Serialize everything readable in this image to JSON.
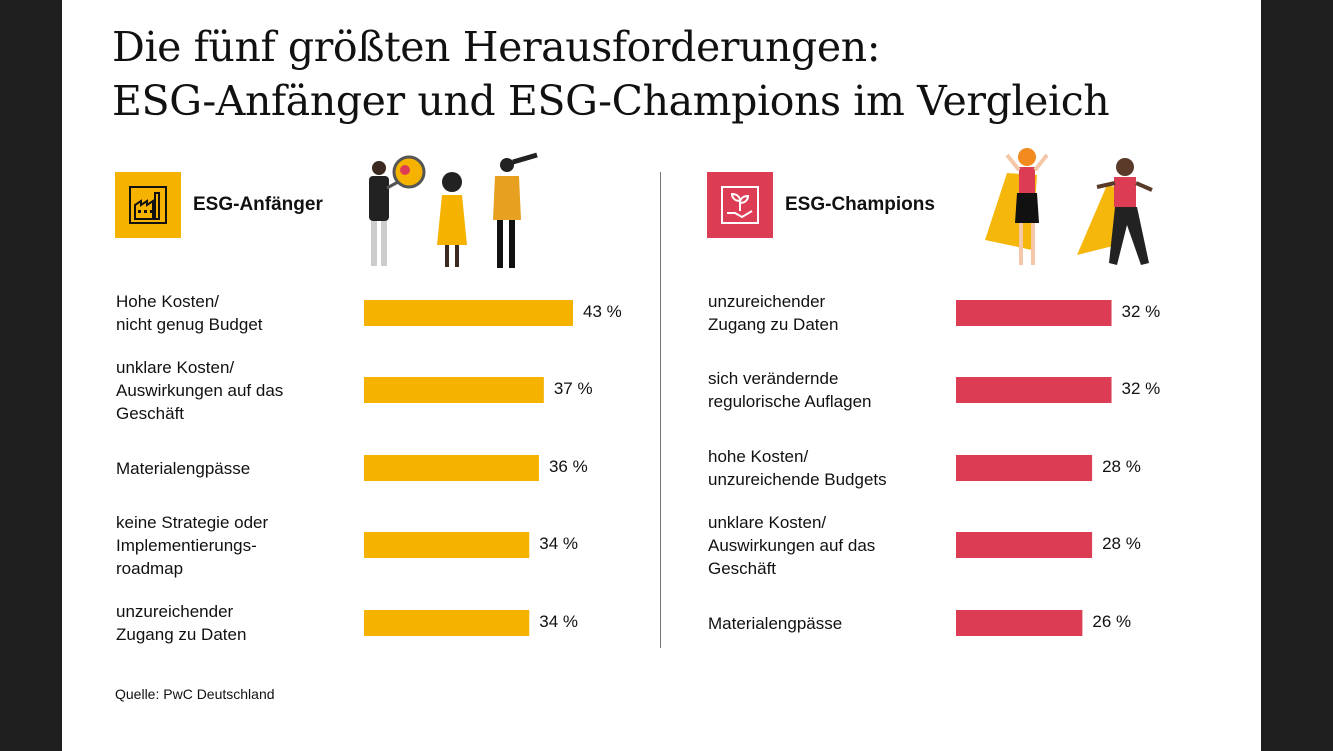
{
  "title_lines": [
    "Die fünf größten Herausforderungen:",
    "ESG-Anfänger und ESG-Champions im Vergleich"
  ],
  "source": "Quelle: PwC Deutschland",
  "colors": {
    "anfaenger": "#f5b300",
    "champions": "#dc3d55"
  },
  "icons": {
    "anfaenger": "factory-icon",
    "champions": "plant-in-hand-icon"
  },
  "chart_data": [
    {
      "type": "bar",
      "orientation": "horizontal",
      "title": "ESG-Anfänger",
      "categories": [
        "Hohe Kosten/\nnicht genug Budget",
        "unklare Kosten/\nAuswirkungen auf das\nGeschäft",
        "Materialengpässe",
        "keine Strategie oder\nImplementierungs-\nroadmap",
        "unzureichender\nZugang zu Daten"
      ],
      "values": [
        43,
        37,
        36,
        34,
        34
      ],
      "value_labels": [
        "43 %",
        "37 %",
        "36 %",
        "34 %",
        "34 %"
      ],
      "unit": "%",
      "xlim": [
        0,
        43
      ],
      "grid": false
    },
    {
      "type": "bar",
      "orientation": "horizontal",
      "title": "ESG-Champions",
      "categories": [
        "unzureichender\nZugang zu Daten",
        "sich verändernde\nregulorische Auflagen",
        "hohe Kosten/\nunzureichende Budgets",
        "unklare Kosten/\nAuswirkungen auf das\nGeschäft",
        "Materialengpässe"
      ],
      "values": [
        32,
        32,
        28,
        28,
        26
      ],
      "value_labels": [
        "32 %",
        "32 %",
        "28 %",
        "28 %",
        "26 %"
      ],
      "unit": "%",
      "xlim": [
        0,
        43
      ],
      "grid": false
    }
  ]
}
